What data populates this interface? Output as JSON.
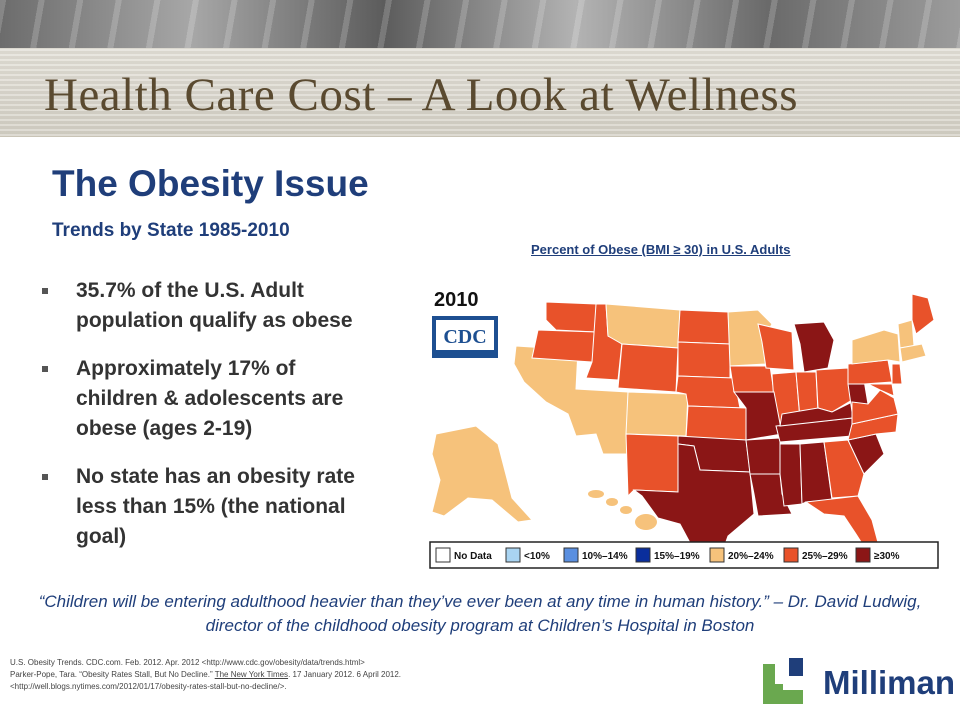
{
  "header": {
    "title": "Health Care Cost – A Look at Wellness"
  },
  "section": {
    "title": "The Obesity Issue",
    "subtitle": "Trends by State 1985-2010"
  },
  "bullets": [
    "35.7% of the U.S. Adult population qualify as obese",
    "Approximately 17% of children & adolescents are obese (ages 2-19)",
    "No state has an obesity rate less than 15% (the national goal)"
  ],
  "map": {
    "caption": "Percent of Obese (BMI ≥ 30) in U.S. Adults",
    "year": "2010",
    "source_logo": "CDC",
    "colors": {
      "no_data": "#ffffff",
      "lt10": "#a9d4f2",
      "10_14": "#5a8fe0",
      "15_19": "#0a2e9c",
      "20_24": "#f6c27b",
      "25_29": "#e8522a",
      "ge30": "#8b1616"
    },
    "legend": [
      {
        "label": "No Data",
        "color": "#ffffff"
      },
      {
        "label": "<10%",
        "color": "#a9d4f2"
      },
      {
        "label": "10%–14%",
        "color": "#5a8fe0"
      },
      {
        "label": "15%–19%",
        "color": "#0a2e9c"
      },
      {
        "label": "20%–24%",
        "color": "#f6c27b"
      },
      {
        "label": "25%–29%",
        "color": "#e8522a"
      },
      {
        "label": "≥30%",
        "color": "#8b1616"
      }
    ]
  },
  "quote": "“Children will be entering adulthood heavier than they’ve ever been at any time in human history.” – Dr. David Ludwig, director of the childhood obesity program at Children’s Hospital in Boston",
  "footnotes": {
    "line1": "U.S. Obesity Trends. CDC.com. Feb. 2012. Apr. 2012 <http://www.cdc.gov/obesity/data/trends.html>",
    "line2_pre": "Parker-Pope, Tara. “Obesity Rates Stall, But No Decline.” ",
    "line2_link": "The New York Times",
    "line2_post": ". 17 January 2012. 6 April 2012.",
    "line3": "<http://well.blogs.nytimes.com/2012/01/17/obesity-rates-stall-but-no-decline/>."
  },
  "logo": {
    "name": "Milliman"
  }
}
